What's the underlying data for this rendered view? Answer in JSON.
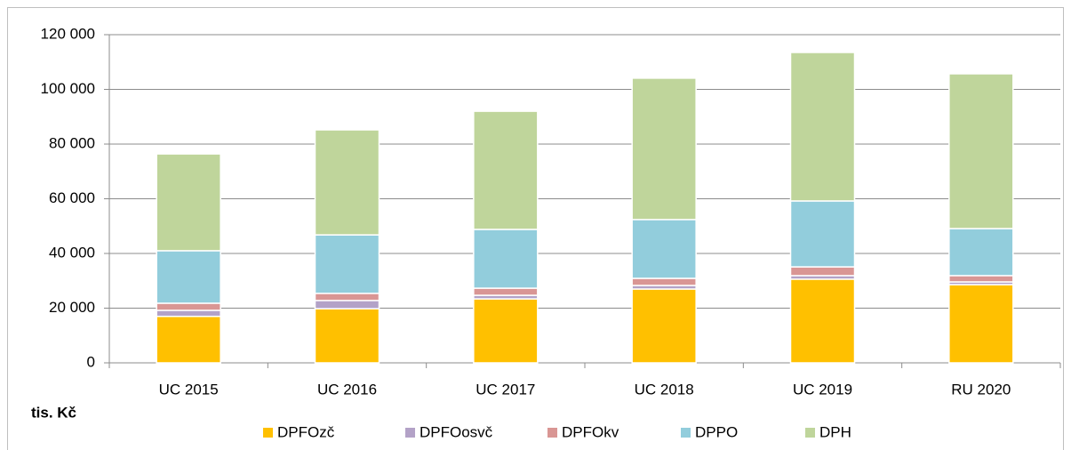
{
  "chart_data": {
    "type": "stacked_bar",
    "unit_label": "tis. Kč",
    "categories": [
      "UC 2015",
      "UC 2016",
      "UC 2017",
      "UC 2018",
      "UC 2019",
      "RU 2020"
    ],
    "series": [
      {
        "name": "DPFOzč",
        "color": "#ffc000",
        "values": [
          17000,
          19800,
          23400,
          27000,
          30600,
          28600
        ]
      },
      {
        "name": "DPFOosvč",
        "color": "#b3a2c7",
        "values": [
          2200,
          3000,
          1300,
          1300,
          1300,
          1000
        ]
      },
      {
        "name": "DPFOkv",
        "color": "#d99694",
        "values": [
          2600,
          2600,
          2600,
          2600,
          3200,
          2300
        ]
      },
      {
        "name": "DPPO",
        "color": "#92cddc",
        "values": [
          19200,
          21400,
          21500,
          21500,
          24100,
          17200
        ]
      },
      {
        "name": "DPH",
        "color": "#bfd59b",
        "values": [
          35400,
          38400,
          43200,
          51700,
          54300,
          56600
        ]
      }
    ],
    "ylim": [
      0,
      120000
    ],
    "yticks": [
      0,
      {
        "value": 20000,
        "label": "20 000"
      },
      {
        "value": 40000,
        "label": "40 000"
      },
      {
        "value": 60000,
        "label": "60 000"
      },
      {
        "value": 80000,
        "label": "80 000"
      },
      {
        "value": 100000,
        "label": "100 000"
      },
      {
        "value": 120000,
        "label": "120 000"
      }
    ],
    "grid": true
  }
}
